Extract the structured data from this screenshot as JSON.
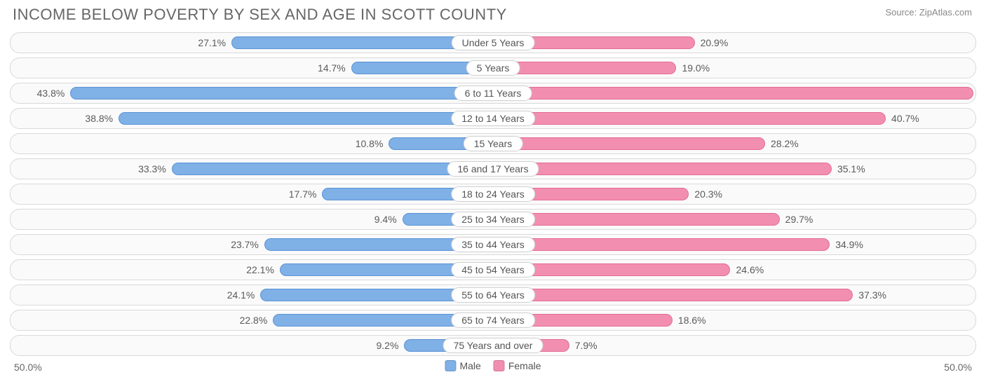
{
  "title": "INCOME BELOW POVERTY BY SEX AND AGE IN SCOTT COUNTY",
  "source": "Source: ZipAtlas.com",
  "axis": {
    "max": 50.0,
    "left_label": "50.0%",
    "right_label": "50.0%"
  },
  "colors": {
    "male_fill": "#7fb0e6",
    "male_border": "#5a94d6",
    "female_fill": "#f28fb0",
    "female_border": "#e46a95",
    "row_border": "#d9d9d9",
    "row_bg": "#fafafa",
    "text": "#5a5a5a",
    "pill_bg": "#ffffff",
    "pill_border": "#d0d0d0"
  },
  "legend": [
    {
      "label": "Male",
      "color": "#7fb0e6"
    },
    {
      "label": "Female",
      "color": "#f28fb0"
    }
  ],
  "rows": [
    {
      "category": "Under 5 Years",
      "male": 27.1,
      "female": 20.9
    },
    {
      "category": "5 Years",
      "male": 14.7,
      "female": 19.0
    },
    {
      "category": "6 to 11 Years",
      "male": 43.8,
      "female": 49.8
    },
    {
      "category": "12 to 14 Years",
      "male": 38.8,
      "female": 40.7
    },
    {
      "category": "15 Years",
      "male": 10.8,
      "female": 28.2
    },
    {
      "category": "16 and 17 Years",
      "male": 33.3,
      "female": 35.1
    },
    {
      "category": "18 to 24 Years",
      "male": 17.7,
      "female": 20.3
    },
    {
      "category": "25 to 34 Years",
      "male": 9.4,
      "female": 29.7
    },
    {
      "category": "35 to 44 Years",
      "male": 23.7,
      "female": 34.9
    },
    {
      "category": "45 to 54 Years",
      "male": 22.1,
      "female": 24.6
    },
    {
      "category": "55 to 64 Years",
      "male": 24.1,
      "female": 37.3
    },
    {
      "category": "65 to 74 Years",
      "male": 22.8,
      "female": 18.6
    },
    {
      "category": "75 Years and over",
      "male": 9.2,
      "female": 7.9
    }
  ]
}
